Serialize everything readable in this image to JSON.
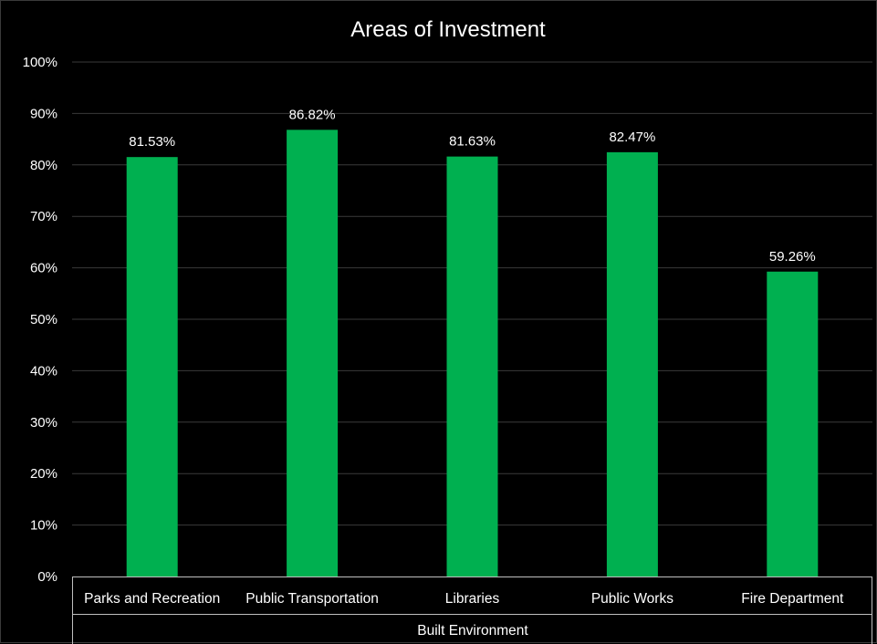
{
  "chart_data": {
    "type": "bar",
    "title": "Areas of Investment",
    "group_label": "Built Environment",
    "categories": [
      "Parks and Recreation",
      "Public Transportation",
      "Libraries",
      "Public Works",
      "Fire Department"
    ],
    "values": [
      81.53,
      86.82,
      81.63,
      82.47,
      59.26
    ],
    "data_labels": [
      "81.53%",
      "86.82%",
      "81.63%",
      "82.47%",
      "59.26%"
    ],
    "ylim": [
      0,
      100
    ],
    "yticks": [
      0,
      10,
      20,
      30,
      40,
      50,
      60,
      70,
      80,
      90,
      100
    ],
    "ytick_labels": [
      "0%",
      "10%",
      "20%",
      "30%",
      "40%",
      "50%",
      "60%",
      "70%",
      "80%",
      "90%",
      "100%"
    ],
    "xlabel": "",
    "ylabel": "",
    "grid": true,
    "legend": "none",
    "colors": {
      "background": "#000000",
      "bar": "#00b050",
      "gridline": "#3a3a3a",
      "text": "#ffffff",
      "axis_line": "#bfbfbf"
    }
  }
}
